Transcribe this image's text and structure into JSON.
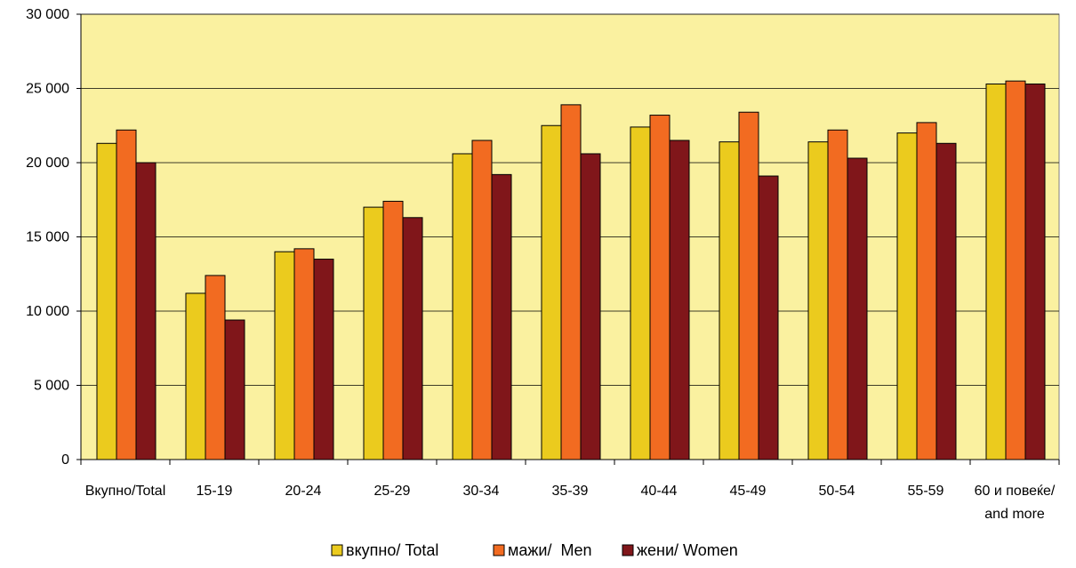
{
  "chart_data": {
    "type": "bar",
    "categories": [
      [
        "Вкупно/Total"
      ],
      [
        "15-19"
      ],
      [
        "20-24"
      ],
      [
        "25-29"
      ],
      [
        "30-34"
      ],
      [
        "35-39"
      ],
      [
        "40-44"
      ],
      [
        "45-49"
      ],
      [
        "50-54"
      ],
      [
        "55-59"
      ],
      [
        "60 и повеќе/",
        "and more"
      ]
    ],
    "series": [
      {
        "name": "вкупно/ Total",
        "color": "#EBCB1E",
        "values": [
          21300,
          11200,
          14000,
          17000,
          20600,
          22500,
          22400,
          21400,
          21400,
          22000,
          25300
        ]
      },
      {
        "name": "мажи/  Men",
        "color": "#F26B21",
        "values": [
          22200,
          12400,
          14200,
          17400,
          21500,
          23900,
          23200,
          23400,
          22200,
          22700,
          25500
        ]
      },
      {
        "name": "жени/ Women",
        "color": "#80161A",
        "values": [
          20000,
          9400,
          13500,
          16300,
          19200,
          20600,
          21500,
          19100,
          20300,
          21300,
          25300
        ]
      }
    ],
    "yticks": [
      "0",
      "5 000",
      "10 000",
      "15 000",
      "20 000",
      "25 000",
      "30 000"
    ],
    "ylim": [
      0,
      30000
    ],
    "plot_background": "#FAF1A0",
    "grid": true,
    "legend_position": "bottom"
  }
}
